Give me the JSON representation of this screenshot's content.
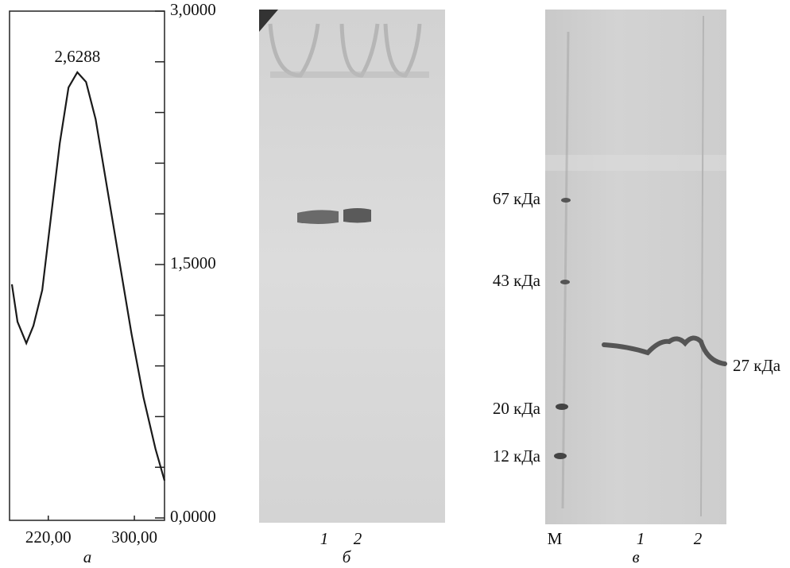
{
  "chart_data": {
    "type": "line",
    "caption": "а",
    "color": "#1a1a1a",
    "x": [
      186.2,
      191.4,
      199.6,
      206.2,
      214.4,
      221,
      230.7,
      238.8,
      247,
      255.1,
      264,
      275.1,
      286.2,
      297.3,
      308.4,
      319.6,
      328
    ],
    "values": [
      1.383,
      1.161,
      1.034,
      1.138,
      1.349,
      1.702,
      2.219,
      2.548,
      2.638,
      2.581,
      2.36,
      1.937,
      1.514,
      1.091,
      0.715,
      0.409,
      0.221
    ],
    "xlim": [
      184,
      328
    ],
    "ylim": [
      0,
      3
    ],
    "xticks": [
      {
        "value": 220,
        "label": "220,00"
      },
      {
        "value": 300,
        "label": "300,00"
      }
    ],
    "yticks": [
      {
        "value": 0,
        "label": "0,0000"
      },
      {
        "value": 1.5,
        "label": "1,5000"
      },
      {
        "value": 3,
        "label": "3,0000"
      }
    ],
    "yminor_ticks": [
      0.3,
      0.6,
      0.9,
      1.2,
      1.8,
      2.1,
      2.4,
      2.7
    ],
    "annotation": {
      "label": "2,6288",
      "value": 2.6288,
      "x": 247
    }
  },
  "gel_b": {
    "lanes": [
      "1",
      "2"
    ],
    "caption": "б"
  },
  "gel_c": {
    "lanes": [
      "M",
      "1",
      "2"
    ],
    "markers": [
      "67 кДа",
      "43 кДа",
      "20 кДа",
      "12 кДа"
    ],
    "band_label": "27 кДа",
    "caption": "в"
  }
}
